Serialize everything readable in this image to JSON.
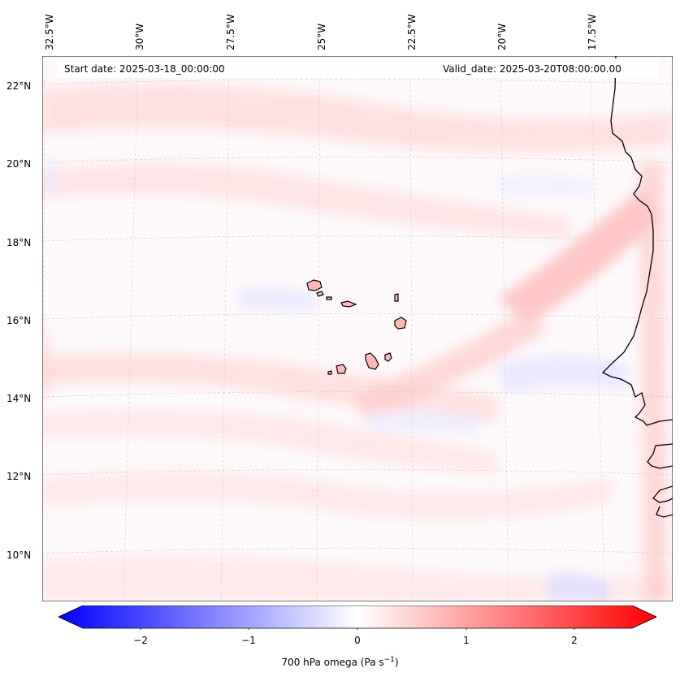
{
  "map": {
    "start_date": "Start date: 2025-03-18_00:00:00",
    "valid_date": "Valid_date: 2025-03-20T08:00:00.00",
    "lon_labels": [
      "32.5°W",
      "30°W",
      "27.5°W",
      "25°W",
      "22.5°W",
      "20°W",
      "17.5°W"
    ],
    "lat_labels": [
      "22°N",
      "20°N",
      "18°N",
      "16°N",
      "14°N",
      "12°N",
      "10°N"
    ],
    "land_outline_color": "#000000",
    "gridline_color": "#cccccc"
  },
  "colorbar": {
    "title": "700 hPa omega (Pa s",
    "title_exp": "−1",
    "title_end": ")",
    "ticks": [
      "−2",
      "−1",
      "0",
      "1",
      "2"
    ],
    "range": [
      -2.6,
      2.6
    ],
    "colormap": "bwr",
    "colors": {
      "min": "#0000ff",
      "mid": "#ffffff",
      "max": "#ff0000"
    }
  },
  "chart_data": {
    "type": "map",
    "variable": "700 hPa omega",
    "units": "Pa s-1",
    "lon_ticks": [
      -32.5,
      -30,
      -27.5,
      -25,
      -22.5,
      -20,
      -17.5
    ],
    "lat_ticks": [
      22,
      20,
      18,
      16,
      14,
      12,
      10
    ],
    "color_scale": [
      -2.6,
      2.6
    ]
  }
}
